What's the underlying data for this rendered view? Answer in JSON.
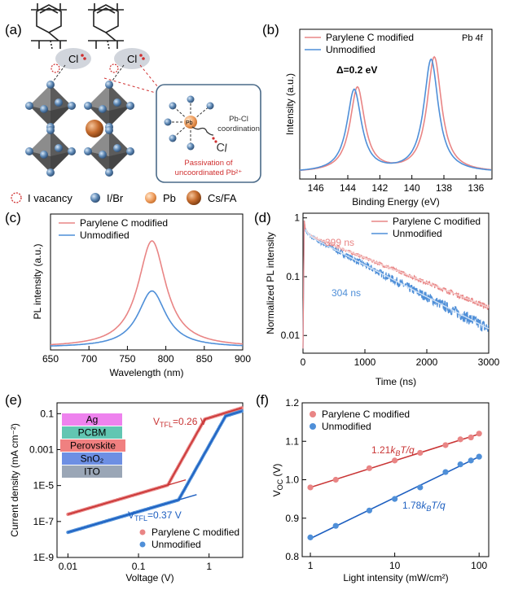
{
  "colors": {
    "modified": "#e98585",
    "unmodified": "#4f8fd8",
    "fit_mod": "#c93535",
    "fit_unmod": "#1d5fc0",
    "pb": "#f0a061",
    "csfa": "#c46a2c",
    "ibr": "#5b86b3"
  },
  "panel_a": {
    "label": "(a)",
    "cl_label": "Cl",
    "pb_label": "Pb",
    "cl_small": "Cl",
    "inset_coord": "Pb-Cl\ncoordination",
    "inset_pass": "Passivation of\nuncoordinated Pb²⁺",
    "legend": [
      {
        "name": "vacancy",
        "label": "I vacancy"
      },
      {
        "name": "ibr",
        "label": "I/Br"
      },
      {
        "name": "pb",
        "label": "Pb"
      },
      {
        "name": "csfa",
        "label": "Cs/FA"
      }
    ]
  },
  "chart_data": [
    {
      "id": "b",
      "type": "line",
      "panel_label": "(b)",
      "annotation": "Pb 4f",
      "title": "",
      "xlabel": "Binding Energy (eV)",
      "ylabel": "Intensity (a.u.)",
      "xlim": [
        147,
        135
      ],
      "xticks": [
        146,
        144,
        142,
        140,
        138,
        136
      ],
      "delta_label": "Δ=0.2 eV",
      "series": [
        {
          "name": "Parylene C modified",
          "color": "#e98585",
          "peaks": [
            143.4,
            138.6
          ]
        },
        {
          "name": "Unmodified",
          "color": "#4f8fd8",
          "peaks": [
            143.6,
            138.8
          ]
        }
      ]
    },
    {
      "id": "c",
      "type": "line",
      "panel_label": "(c)",
      "xlabel": "Wavelength (nm)",
      "ylabel": "PL intensity (a.u.)",
      "xlim": [
        650,
        900
      ],
      "xticks": [
        650,
        700,
        750,
        800,
        850,
        900
      ],
      "series": [
        {
          "name": "Parylene C modified",
          "color": "#e98585",
          "peak_nm": 782,
          "peak_rel": 1.0
        },
        {
          "name": "Unmodified",
          "color": "#4f8fd8",
          "peak_nm": 782,
          "peak_rel": 0.53
        }
      ]
    },
    {
      "id": "d",
      "type": "line",
      "panel_label": "(d)",
      "xlabel": "Time (ns)",
      "ylabel": "Normalized PL intensity",
      "xlim": [
        0,
        3000
      ],
      "xticks": [
        0,
        1000,
        2000,
        3000
      ],
      "ylim_log": [
        0.005,
        1.2
      ],
      "yticks": [
        "0.01",
        "0.1",
        "1"
      ],
      "series": [
        {
          "name": "Parylene C modified",
          "color": "#e98585",
          "lifetime_label": "399 ns",
          "end_value": 0.03
        },
        {
          "name": "Unmodified",
          "color": "#4f8fd8",
          "lifetime_label": "304 ns",
          "end_value": 0.013
        }
      ]
    },
    {
      "id": "e",
      "type": "scatter",
      "panel_label": "(e)",
      "xlabel": "Voltage (V)",
      "ylabel": "Current density (mA cm⁻²)",
      "xlim_log": [
        0.007,
        3
      ],
      "xticks": [
        "0.01",
        "0.1",
        "1"
      ],
      "ylim_log": [
        1e-09,
        0.4
      ],
      "yticks": [
        "1E-9",
        "1E-7",
        "1E-5",
        "0.001",
        "0.1"
      ],
      "vtfl": [
        {
          "prefix": "V",
          "sub": "TFL",
          "suffix": "=0.26 V"
        },
        {
          "prefix": "V",
          "sub": "TFL",
          "suffix": "=0.37 V"
        }
      ],
      "stack": [
        "Ag",
        "PCBM",
        "Perovskite",
        "SnO₂",
        "ITO"
      ],
      "stack_colors": [
        "#ee82ee",
        "#62c6b2",
        "#f08080",
        "#6d8fe3",
        "#9aa6b6"
      ],
      "series": [
        {
          "name": "Parylene C modified",
          "color": "#e98585",
          "J_at_0.01": 2.5e-07,
          "J_at_3": 0.18
        },
        {
          "name": "Unmodified",
          "color": "#4f8fd8",
          "J_at_0.01": 2.5e-08,
          "J_at_3": 0.12
        }
      ]
    },
    {
      "id": "f",
      "type": "scatter",
      "panel_label": "(f)",
      "xlabel": "Light intensity (mW/cm²)",
      "ylabel_main": "V",
      "ylabel_sub": "OC",
      "ylabel_unit": " (V)",
      "xlim_log": [
        0.8,
        130
      ],
      "xticks": [
        "1",
        "10",
        "100"
      ],
      "ylim": [
        0.8,
        1.2
      ],
      "yticks": [
        "0.8",
        "0.9",
        "1.0",
        "1.1",
        "1.2"
      ],
      "x": [
        1,
        2,
        5,
        10,
        20,
        40,
        60,
        80,
        100
      ],
      "series": [
        {
          "name": "Parylene C modified",
          "color": "#e98585",
          "values": [
            0.98,
            1.0,
            1.03,
            1.05,
            1.07,
            1.09,
            1.105,
            1.11,
            1.12
          ],
          "slope_label": "1.21",
          "slope_suffix": "T/q"
        },
        {
          "name": "Unmodified",
          "color": "#4f8fd8",
          "values": [
            0.85,
            0.88,
            0.92,
            0.95,
            0.98,
            1.02,
            1.04,
            1.05,
            1.06
          ],
          "slope_label": "1.78",
          "slope_suffix": "T/q"
        }
      ]
    }
  ]
}
